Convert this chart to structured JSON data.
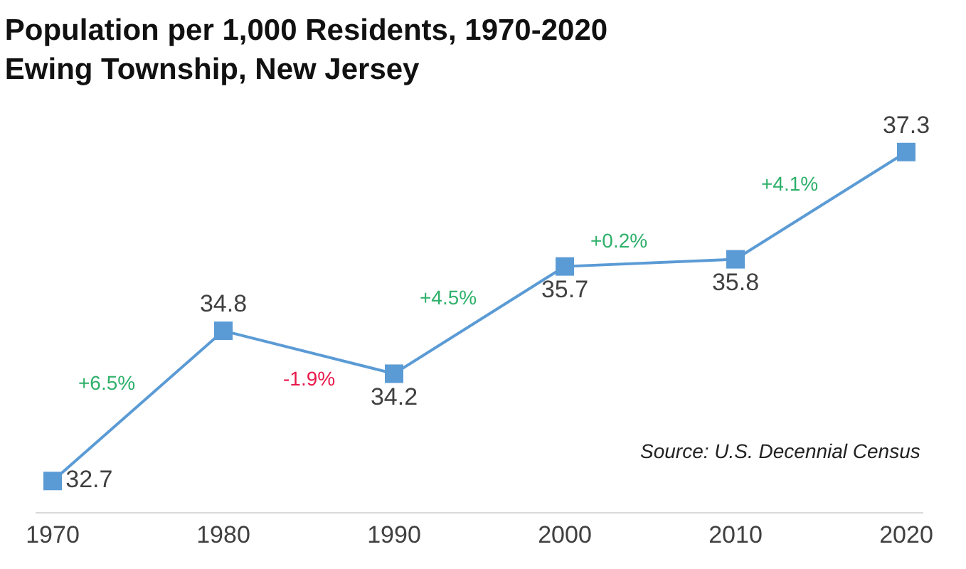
{
  "chart_data": {
    "type": "line",
    "title": "Population per 1,000 Residents, 1970-2020\nEwing Township, New Jersey",
    "x": [
      1970,
      1980,
      1990,
      2000,
      2010,
      2020
    ],
    "series": [
      {
        "color": "#5b9bd5",
        "values": [
          32.7,
          34.8,
          34.2,
          35.7,
          35.8,
          37.3
        ]
      }
    ],
    "xlim": [
      1969,
      2021
    ],
    "xticks": [
      1970,
      1980,
      1990,
      2000,
      2010,
      2020
    ],
    "tick_labels": "x",
    "legend": false,
    "marker": "square",
    "line_style": "solid",
    "data_labels": true,
    "annotations": [
      "+6.5%",
      "-1.9%",
      "+4.5%",
      "+0.2%",
      "+4.1%",
      "Source: U.S. Decennial Census"
    ]
  }
}
